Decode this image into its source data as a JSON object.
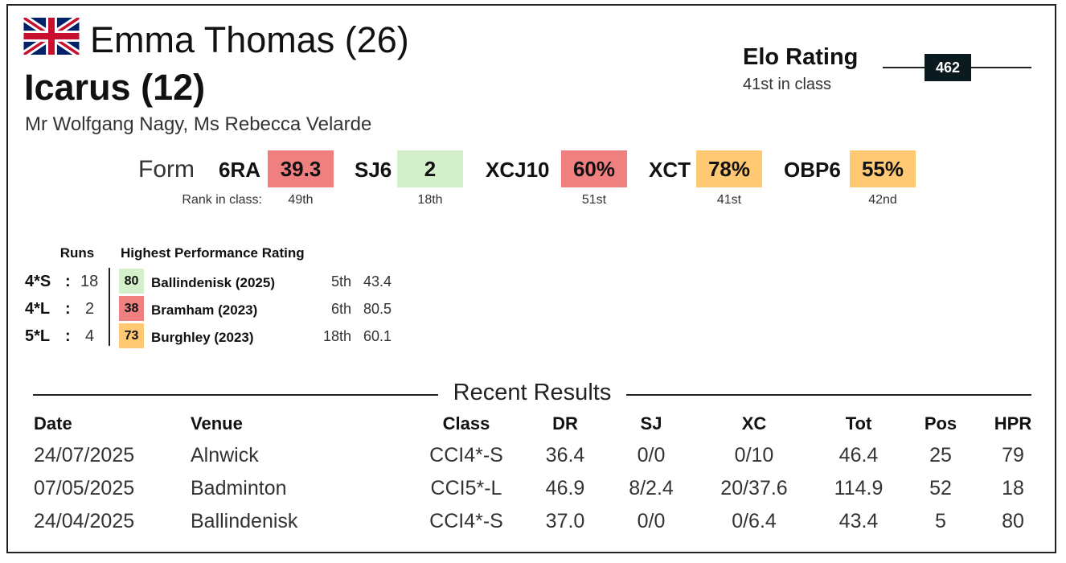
{
  "rider": "Emma Thomas (26)",
  "horse": "Icarus (12)",
  "owners": "Mr Wolfgang Nagy, Ms Rebecca Velarde",
  "elo": {
    "title": "Elo Rating",
    "value": "462",
    "rank": "41st in class"
  },
  "form": {
    "label": "Form",
    "rank_label": "Rank in class:",
    "items": [
      {
        "name": "6RA",
        "value": "39.3",
        "rank": "49th",
        "color": "#f08080"
      },
      {
        "name": "SJ6",
        "value": "2",
        "rank": "18th",
        "color": "#d3f0cb"
      },
      {
        "name": "XCJ10",
        "value": "60%",
        "rank": "51st",
        "color": "#f08080"
      },
      {
        "name": "XCT",
        "value": "78%",
        "rank": "41st",
        "color": "#ffc872"
      },
      {
        "name": "OBP6",
        "value": "55%",
        "rank": "42nd",
        "color": "#ffc872"
      }
    ]
  },
  "runs": {
    "runs_header": "Runs",
    "hpr_header": "Highest Performance Rating",
    "separator": ":",
    "rows": [
      {
        "level": "4*S",
        "runs": "18",
        "hpr": "80",
        "event": "Ballindenisk (2025)",
        "position": "5th",
        "score": "43.4",
        "color": "#d3f0cb"
      },
      {
        "level": "4*L",
        "runs": "2",
        "hpr": "38",
        "event": "Bramham (2023)",
        "position": "6th",
        "score": "80.5",
        "color": "#f08080"
      },
      {
        "level": "5*L",
        "runs": "4",
        "hpr": "73",
        "event": "Burghley (2023)",
        "position": "18th",
        "score": "60.1",
        "color": "#ffc872"
      }
    ]
  },
  "results": {
    "title": "Recent Results",
    "columns": [
      "Date",
      "Venue",
      "Class",
      "DR",
      "SJ",
      "XC",
      "Tot",
      "Pos",
      "HPR"
    ],
    "rows": [
      [
        "24/07/2025",
        "Alnwick",
        "CCI4*-S",
        "36.4",
        "0/0",
        "0/10",
        "46.4",
        "25",
        "79"
      ],
      [
        "07/05/2025",
        "Badminton",
        "CCI5*-L",
        "46.9",
        "8/2.4",
        "20/37.6",
        "114.9",
        "52",
        "18"
      ],
      [
        "24/04/2025",
        "Ballindenisk",
        "CCI4*-S",
        "37.0",
        "0/0",
        "0/6.4",
        "43.4",
        "5",
        "80"
      ]
    ]
  }
}
